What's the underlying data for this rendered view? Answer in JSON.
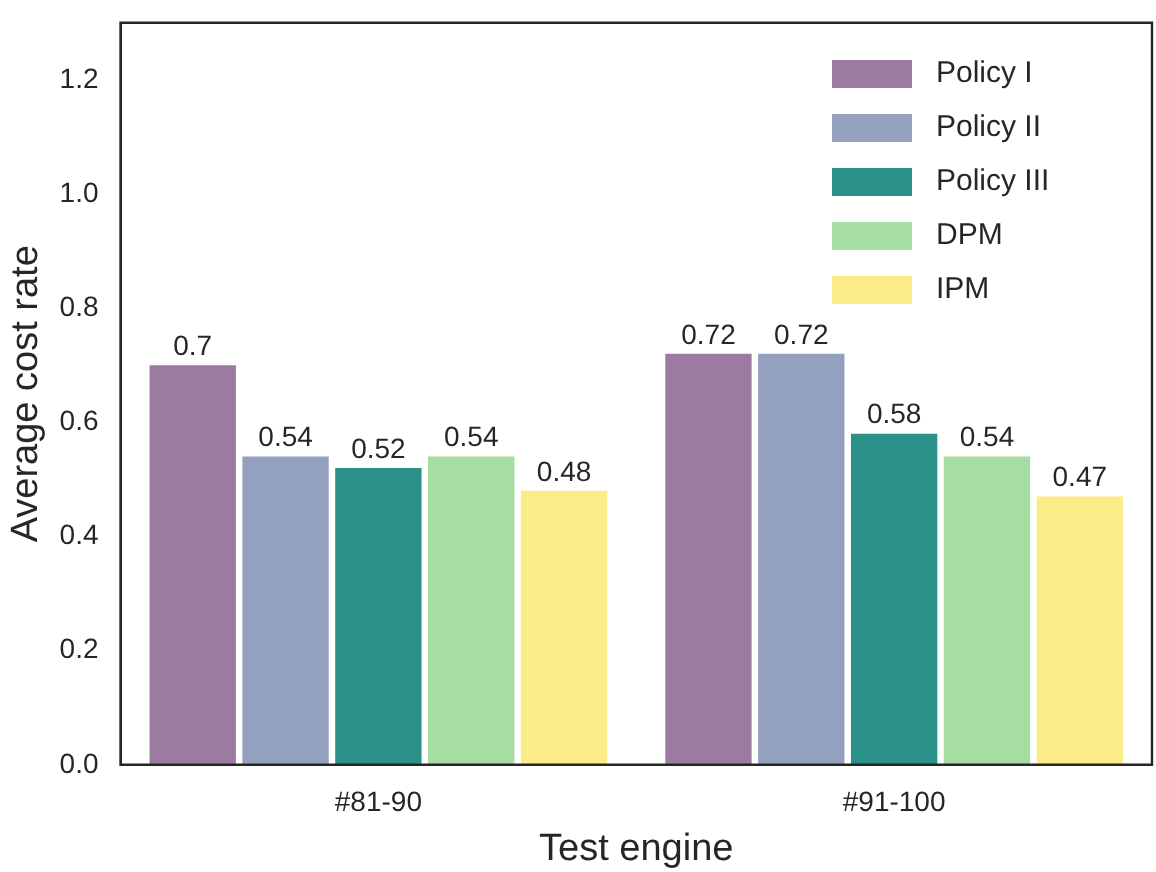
{
  "chart_data": {
    "type": "bar",
    "xlabel": "Test engine",
    "ylabel": "Average cost rate",
    "categories": [
      "#81-90",
      "#91-100"
    ],
    "series": [
      {
        "name": "Policy I",
        "color": "#9b7ba0",
        "values": [
          0.7,
          0.72
        ]
      },
      {
        "name": "Policy II",
        "color": "#93a0c0",
        "values": [
          0.54,
          0.72
        ]
      },
      {
        "name": "Policy III",
        "color": "#2a9188",
        "values": [
          0.52,
          0.58
        ]
      },
      {
        "name": "DPM",
        "color": "#a6dda0",
        "values": [
          0.54,
          0.54
        ]
      },
      {
        "name": "IPM",
        "color": "#fbec8a",
        "values": [
          0.48,
          0.47
        ]
      }
    ],
    "ylim": [
      0,
      1.3
    ],
    "yticks": [
      {
        "value": 0,
        "label": "0.0"
      },
      {
        "value": 0.2,
        "label": "0.2"
      },
      {
        "value": 0.4,
        "label": "0.4"
      },
      {
        "value": 0.6,
        "label": "0.6"
      },
      {
        "value": 0.8,
        "label": "0.8"
      },
      {
        "value": 1,
        "label": "1.0"
      },
      {
        "value": 1.2,
        "label": "1.2"
      }
    ],
    "data_labels": true,
    "grid": false,
    "legend": "top right"
  }
}
